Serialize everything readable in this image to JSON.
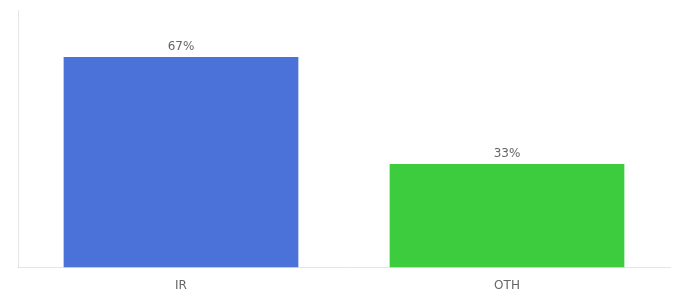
{
  "chart_data": {
    "type": "bar",
    "categories": [
      "IR",
      "OTH"
    ],
    "values": [
      67,
      33
    ],
    "value_labels": [
      "67%",
      "33%"
    ],
    "colors": [
      "#4a72d9",
      "#3dcc3d"
    ],
    "ylim": [
      0,
      82
    ],
    "data_labels": true,
    "tick_labels": "x",
    "grid": false
  }
}
